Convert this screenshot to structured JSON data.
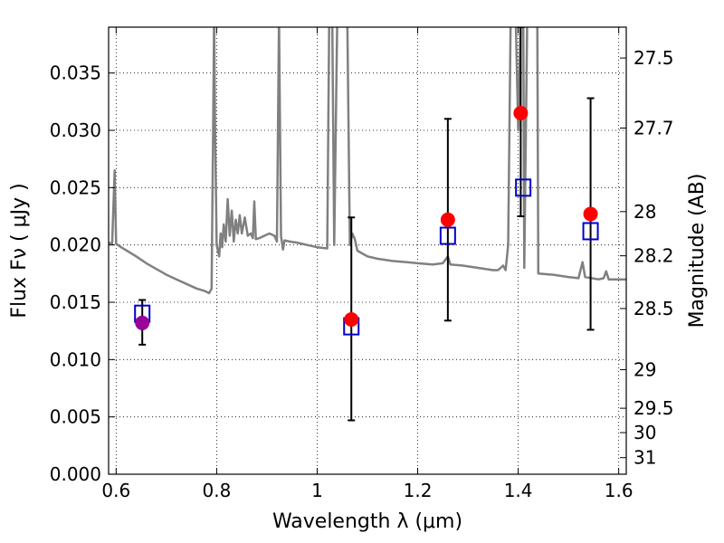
{
  "chart_data": {
    "type": "scatter",
    "title": "",
    "xlabel": "Wavelength  λ (μm)",
    "ylabel": "Flux  Fν  ( μJy )",
    "y2label": "Magnitude (AB)",
    "xlim": [
      0.585,
      1.615
    ],
    "ylim": [
      0.0,
      0.039
    ],
    "grid": true,
    "x_ticks": [
      {
        "value": 0.6,
        "label": "0.6"
      },
      {
        "value": 0.8,
        "label": "0.8"
      },
      {
        "value": 1.0,
        "label": "1"
      },
      {
        "value": 1.2,
        "label": "1.2"
      },
      {
        "value": 1.4,
        "label": "1.4"
      },
      {
        "value": 1.6,
        "label": "1.6"
      }
    ],
    "y_ticks": [
      {
        "value": 0.0,
        "label": "0.000"
      },
      {
        "value": 0.005,
        "label": "0.005"
      },
      {
        "value": 0.01,
        "label": "0.010"
      },
      {
        "value": 0.015,
        "label": "0.015"
      },
      {
        "value": 0.02,
        "label": "0.020"
      },
      {
        "value": 0.025,
        "label": "0.025"
      },
      {
        "value": 0.03,
        "label": "0.030"
      },
      {
        "value": 0.035,
        "label": "0.035"
      }
    ],
    "y2_ticks": [
      {
        "mag": 27.5,
        "label": "27.5"
      },
      {
        "mag": 27.7,
        "label": "27.7"
      },
      {
        "mag": 28.0,
        "label": "28"
      },
      {
        "mag": 28.2,
        "label": "28.2"
      },
      {
        "mag": 28.5,
        "label": "28.5"
      },
      {
        "mag": 29.0,
        "label": "29"
      },
      {
        "mag": 29.5,
        "label": "29.5"
      },
      {
        "mag": 30.0,
        "label": "30"
      },
      {
        "mag": 31.0,
        "label": "31"
      }
    ],
    "model_spectrum": {
      "color": "#808080",
      "points": [
        [
          0.585,
          0.0202
        ],
        [
          0.592,
          0.0201
        ],
        [
          0.594,
          0.0226
        ],
        [
          0.597,
          0.0265
        ],
        [
          0.6,
          0.0201
        ],
        [
          0.61,
          0.0198
        ],
        [
          0.64,
          0.019
        ],
        [
          0.66,
          0.0184
        ],
        [
          0.7,
          0.0174
        ],
        [
          0.73,
          0.0168
        ],
        [
          0.76,
          0.0162
        ],
        [
          0.775,
          0.016
        ],
        [
          0.785,
          0.0158
        ],
        [
          0.79,
          0.0162
        ],
        [
          0.793,
          0.03
        ],
        [
          0.795,
          0.04
        ],
        [
          0.797,
          0.03
        ],
        [
          0.8,
          0.02
        ],
        [
          0.805,
          0.019
        ],
        [
          0.808,
          0.021
        ],
        [
          0.811,
          0.0198
        ],
        [
          0.814,
          0.0218
        ],
        [
          0.818,
          0.0203
        ],
        [
          0.822,
          0.024
        ],
        [
          0.826,
          0.0208
        ],
        [
          0.83,
          0.023
        ],
        [
          0.834,
          0.0203
        ],
        [
          0.838,
          0.0222
        ],
        [
          0.842,
          0.021
        ],
        [
          0.846,
          0.0226
        ],
        [
          0.85,
          0.021
        ],
        [
          0.856,
          0.0224
        ],
        [
          0.862,
          0.0208
        ],
        [
          0.868,
          0.021
        ],
        [
          0.872,
          0.0206
        ],
        [
          0.875,
          0.0238
        ],
        [
          0.878,
          0.0205
        ],
        [
          0.885,
          0.0206
        ],
        [
          0.895,
          0.0208
        ],
        [
          0.905,
          0.021
        ],
        [
          0.915,
          0.0208
        ],
        [
          0.92,
          0.0203
        ],
        [
          0.924,
          0.04
        ],
        [
          0.928,
          0.0208
        ],
        [
          0.932,
          0.0196
        ],
        [
          0.935,
          0.0204
        ],
        [
          0.945,
          0.0203
        ],
        [
          0.96,
          0.0202
        ],
        [
          0.98,
          0.02
        ],
        [
          1.0,
          0.0198
        ],
        [
          1.02,
          0.0197
        ],
        [
          1.024,
          0.04
        ],
        [
          1.03,
          0.04
        ],
        [
          1.034,
          0.02
        ],
        [
          1.04,
          0.04
        ],
        [
          1.05,
          0.04
        ],
        [
          1.06,
          0.0395
        ],
        [
          1.065,
          0.02
        ],
        [
          1.07,
          0.021
        ],
        [
          1.075,
          0.0205
        ],
        [
          1.08,
          0.0195
        ],
        [
          1.1,
          0.019
        ],
        [
          1.12,
          0.0188
        ],
        [
          1.15,
          0.0186
        ],
        [
          1.18,
          0.0185
        ],
        [
          1.2,
          0.0184
        ],
        [
          1.23,
          0.0183
        ],
        [
          1.25,
          0.0184
        ],
        [
          1.26,
          0.019
        ],
        [
          1.265,
          0.0183
        ],
        [
          1.29,
          0.0182
        ],
        [
          1.32,
          0.018
        ],
        [
          1.35,
          0.0178
        ],
        [
          1.36,
          0.0178
        ],
        [
          1.37,
          0.0182
        ],
        [
          1.375,
          0.0178
        ],
        [
          1.38,
          0.02
        ],
        [
          1.385,
          0.04
        ],
        [
          1.395,
          0.04
        ],
        [
          1.4,
          0.03
        ],
        [
          1.405,
          0.04
        ],
        [
          1.41,
          0.04
        ],
        [
          1.412,
          0.018
        ],
        [
          1.418,
          0.04
        ],
        [
          1.43,
          0.04
        ],
        [
          1.438,
          0.04
        ],
        [
          1.44,
          0.0175
        ],
        [
          1.47,
          0.0174
        ],
        [
          1.5,
          0.0172
        ],
        [
          1.52,
          0.0171
        ],
        [
          1.528,
          0.0185
        ],
        [
          1.533,
          0.0172
        ],
        [
          1.56,
          0.017
        ],
        [
          1.57,
          0.0171
        ],
        [
          1.575,
          0.0177
        ],
        [
          1.58,
          0.017
        ],
        [
          1.6,
          0.017
        ],
        [
          1.615,
          0.017
        ]
      ]
    },
    "series": [
      {
        "label": "purple",
        "marker": "circle",
        "color": "#990099",
        "points": [
          {
            "x": 0.652,
            "y": 0.0132
          }
        ]
      },
      {
        "label": "red",
        "marker": "circle",
        "color": "#ff0000",
        "points": [
          {
            "x": 1.068,
            "y": 0.0135
          },
          {
            "x": 1.26,
            "y": 0.0222
          },
          {
            "x": 1.405,
            "y": 0.0315
          },
          {
            "x": 1.544,
            "y": 0.0227
          }
        ]
      },
      {
        "label": "blue",
        "marker": "open-square",
        "color": "#0000cc",
        "points": [
          {
            "x": 0.652,
            "y": 0.014
          },
          {
            "x": 1.068,
            "y": 0.0129
          },
          {
            "x": 1.26,
            "y": 0.0208
          },
          {
            "x": 1.41,
            "y": 0.025
          },
          {
            "x": 1.544,
            "y": 0.0212
          }
        ]
      }
    ],
    "error_bars": [
      {
        "x": 0.652,
        "low": 0.0113,
        "high": 0.0152
      },
      {
        "x": 1.068,
        "low": 0.0047,
        "high": 0.0224
      },
      {
        "x": 1.26,
        "low": 0.0134,
        "high": 0.031
      },
      {
        "x": 1.405,
        "low": 0.0225,
        "high": 0.039
      },
      {
        "x": 1.544,
        "low": 0.0126,
        "high": 0.0328
      }
    ]
  }
}
